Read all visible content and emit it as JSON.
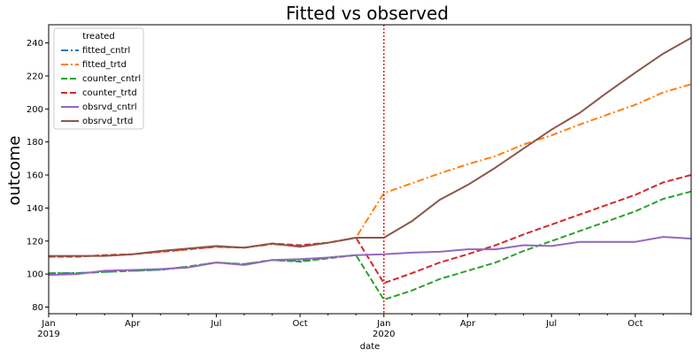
{
  "chart_data": {
    "type": "line",
    "title": "Fitted vs observed",
    "xlabel": "date",
    "ylabel": "outcome",
    "x": [
      "2019-01",
      "2019-02",
      "2019-03",
      "2019-04",
      "2019-05",
      "2019-06",
      "2019-07",
      "2019-08",
      "2019-09",
      "2019-10",
      "2019-11",
      "2019-12",
      "2020-01",
      "2020-02",
      "2020-03",
      "2020-04",
      "2020-05",
      "2020-06",
      "2020-07",
      "2020-08",
      "2020-09",
      "2020-10",
      "2020-11",
      "2020-12"
    ],
    "xlim": [
      "2019-01",
      "2020-12"
    ],
    "ylim": [
      76,
      251
    ],
    "x_major_ticks": [
      {
        "date": "2019-01",
        "label": "Jan",
        "sublabel": "2019"
      },
      {
        "date": "2019-04",
        "label": "Apr",
        "sublabel": ""
      },
      {
        "date": "2019-07",
        "label": "Jul",
        "sublabel": ""
      },
      {
        "date": "2019-10",
        "label": "Oct",
        "sublabel": ""
      },
      {
        "date": "2020-01",
        "label": "Jan",
        "sublabel": "2020"
      },
      {
        "date": "2020-04",
        "label": "Apr",
        "sublabel": ""
      },
      {
        "date": "2020-07",
        "label": "Jul",
        "sublabel": ""
      },
      {
        "date": "2020-10",
        "label": "Oct",
        "sublabel": ""
      }
    ],
    "y_ticks": [
      80,
      100,
      120,
      140,
      160,
      180,
      200,
      220,
      240
    ],
    "vline": {
      "date": "2020-01",
      "color": "#d62728",
      "style": "dotted"
    },
    "legend": {
      "title": "treated",
      "position": "upper-left"
    },
    "grid": false,
    "series": [
      {
        "name": "fitted_cntrl",
        "color": "#1f77b4",
        "dash": "dashdot",
        "width": 2,
        "values": [
          100.5,
          100.6,
          101.3,
          102.0,
          102.6,
          104.5,
          107.0,
          106.0,
          108.5,
          108.0,
          110.0,
          111.5,
          null,
          null,
          null,
          null,
          null,
          null,
          null,
          null,
          null,
          null,
          null,
          null
        ]
      },
      {
        "name": "fitted_trtd",
        "color": "#ff7f0e",
        "dash": "dashdot",
        "width": 2,
        "values": [
          110.5,
          111.0,
          111.0,
          112.0,
          113.5,
          115.0,
          116.5,
          116.0,
          118.0,
          117.0,
          119.0,
          122.0,
          149.0,
          155.0,
          161.0,
          166.5,
          171.5,
          178.5,
          184.0,
          190.5,
          196.5,
          202.5,
          210.0,
          215.0
        ]
      },
      {
        "name": "counter_cntrl",
        "color": "#2ca02c",
        "dash": "dashed",
        "width": 2,
        "values": [
          100.5,
          100.5,
          101.3,
          102.0,
          102.6,
          104.5,
          107.0,
          106.0,
          108.5,
          107.5,
          109.5,
          111.5,
          84.5,
          90.0,
          97.0,
          102.0,
          107.0,
          114.0,
          120.0,
          126.0,
          132.0,
          138.0,
          145.5,
          150.0
        ]
      },
      {
        "name": "counter_trtd",
        "color": "#d62728",
        "dash": "dashed",
        "width": 2,
        "values": [
          110.5,
          110.5,
          111.5,
          112.0,
          113.5,
          115.0,
          116.5,
          116.0,
          118.5,
          117.5,
          119.0,
          122.0,
          94.5,
          100.5,
          107.0,
          112.0,
          117.5,
          124.0,
          130.0,
          136.0,
          142.0,
          148.0,
          155.5,
          160.0
        ]
      },
      {
        "name": "obsrvd_cntrl",
        "color": "#9467bd",
        "dash": "solid",
        "width": 2,
        "values": [
          99.5,
          100.0,
          102.0,
          102.5,
          103.0,
          104.0,
          107.0,
          105.5,
          108.5,
          109.0,
          110.0,
          111.5,
          112.0,
          113.0,
          113.5,
          115.0,
          115.0,
          117.5,
          117.0,
          119.5,
          119.5,
          119.5,
          122.5,
          121.5
        ]
      },
      {
        "name": "obsrvd_trtd",
        "color": "#8c564b",
        "dash": "solid",
        "width": 2,
        "values": [
          111.0,
          111.0,
          111.0,
          112.0,
          114.0,
          115.5,
          117.0,
          116.0,
          118.5,
          116.5,
          119.0,
          122.0,
          122.0,
          132.0,
          145.0,
          154.0,
          164.5,
          176.0,
          187.5,
          197.5,
          210.0,
          222.0,
          233.5,
          243.0
        ]
      }
    ]
  }
}
